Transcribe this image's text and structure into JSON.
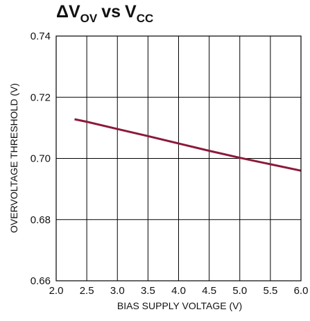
{
  "chart_data": {
    "type": "line",
    "title": {
      "delta": "ΔV",
      "ov_sub": "OV",
      "vs": "vs",
      "v": "V",
      "cc_sub": "CC"
    },
    "xlabel": "BIAS SUPPLY VOLTAGE (V)",
    "ylabel": "OVERVOLTAGE THRESHOLD (V)",
    "xlim": [
      2.0,
      6.0
    ],
    "ylim": [
      0.66,
      0.74
    ],
    "x_ticks": [
      "2.0",
      "2.5",
      "3.0",
      "3.5",
      "4.0",
      "4.5",
      "5.0",
      "5.5",
      "6.0"
    ],
    "y_ticks": [
      "0.74",
      "0.72",
      "0.70",
      "0.68",
      "0.66"
    ],
    "grid": true,
    "series": [
      {
        "color": "#8b1a3a",
        "x": [
          2.3,
          2.5,
          3.0,
          3.5,
          4.0,
          4.5,
          5.0,
          5.5,
          6.0
        ],
        "y": [
          0.7128,
          0.712,
          0.7096,
          0.7073,
          0.7049,
          0.7025,
          0.7002,
          0.6981,
          0.696
        ]
      }
    ]
  }
}
